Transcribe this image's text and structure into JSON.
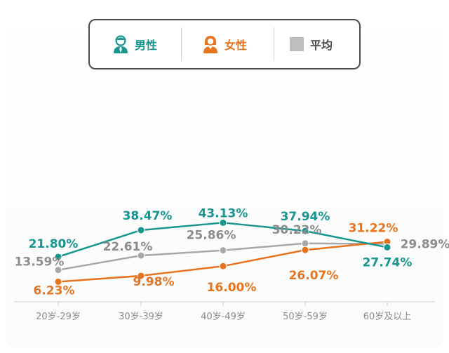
{
  "colors": {
    "male": "#17958f",
    "female": "#e8731e",
    "average": "#a8a8a8",
    "average_label": "#8c8c8c",
    "axis": "#cfcfcf"
  },
  "legend": [
    {
      "key": "male",
      "label": "男性",
      "icon": "male-person-icon"
    },
    {
      "key": "female",
      "label": "女性",
      "icon": "female-person-icon"
    },
    {
      "key": "average",
      "label": "平均",
      "icon": "gray-square-icon"
    }
  ],
  "chart_data": {
    "type": "line",
    "categories": [
      "20岁-29岁",
      "30岁-39岁",
      "40岁-49岁",
      "50岁-59岁",
      "60岁及以上"
    ],
    "series": [
      {
        "name": "男性",
        "key": "male",
        "values": [
          21.8,
          38.47,
          43.13,
          37.94,
          27.74
        ],
        "labels": [
          "21.80%",
          "38.47%",
          "43.13%",
          "37.94%",
          "27.74%"
        ]
      },
      {
        "name": "女性",
        "key": "female",
        "values": [
          6.23,
          9.98,
          16.0,
          26.07,
          31.22
        ],
        "labels": [
          "6.23%",
          "9.98%",
          "16.00%",
          "26.07%",
          "31.22%"
        ]
      },
      {
        "name": "平均",
        "key": "average",
        "values": [
          13.59,
          22.61,
          25.86,
          30.22,
          29.89
        ],
        "labels": [
          "13.59%",
          "22.61%",
          "25.86%",
          "30.22%",
          "29.89%"
        ]
      }
    ],
    "legend_position": "top-center",
    "grid": false
  }
}
